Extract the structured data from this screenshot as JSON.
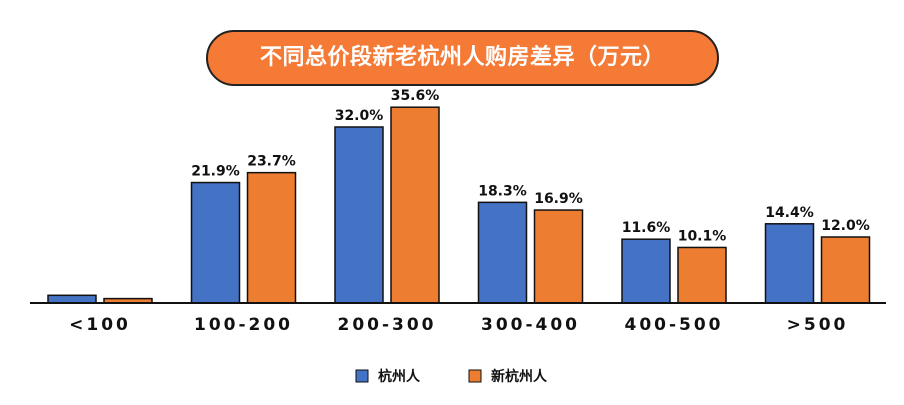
{
  "chart_data": {
    "type": "bar",
    "title": "不同总价段新老杭州人购房差异（万元）",
    "categories": [
      "<100",
      "100-200",
      "200-300",
      "300-400",
      "400-500",
      ">500"
    ],
    "series": [
      {
        "name": "杭州人",
        "color": "#4472C4",
        "values": [
          1.4,
          21.9,
          32.0,
          18.3,
          11.6,
          14.4
        ],
        "labels": [
          "",
          "21.9%",
          "32.0%",
          "18.3%",
          "11.6%",
          "14.4%"
        ]
      },
      {
        "name": "新杭州人",
        "color": "#ED7D31",
        "values": [
          0.8,
          23.7,
          35.6,
          16.9,
          10.1,
          12.0
        ],
        "labels": [
          "",
          "23.7%",
          "35.6%",
          "16.9%",
          "10.1%",
          "12.0%"
        ]
      }
    ],
    "ylim": [
      0,
      40
    ],
    "unit": "%",
    "grid": false,
    "legend": "bottom-center"
  }
}
